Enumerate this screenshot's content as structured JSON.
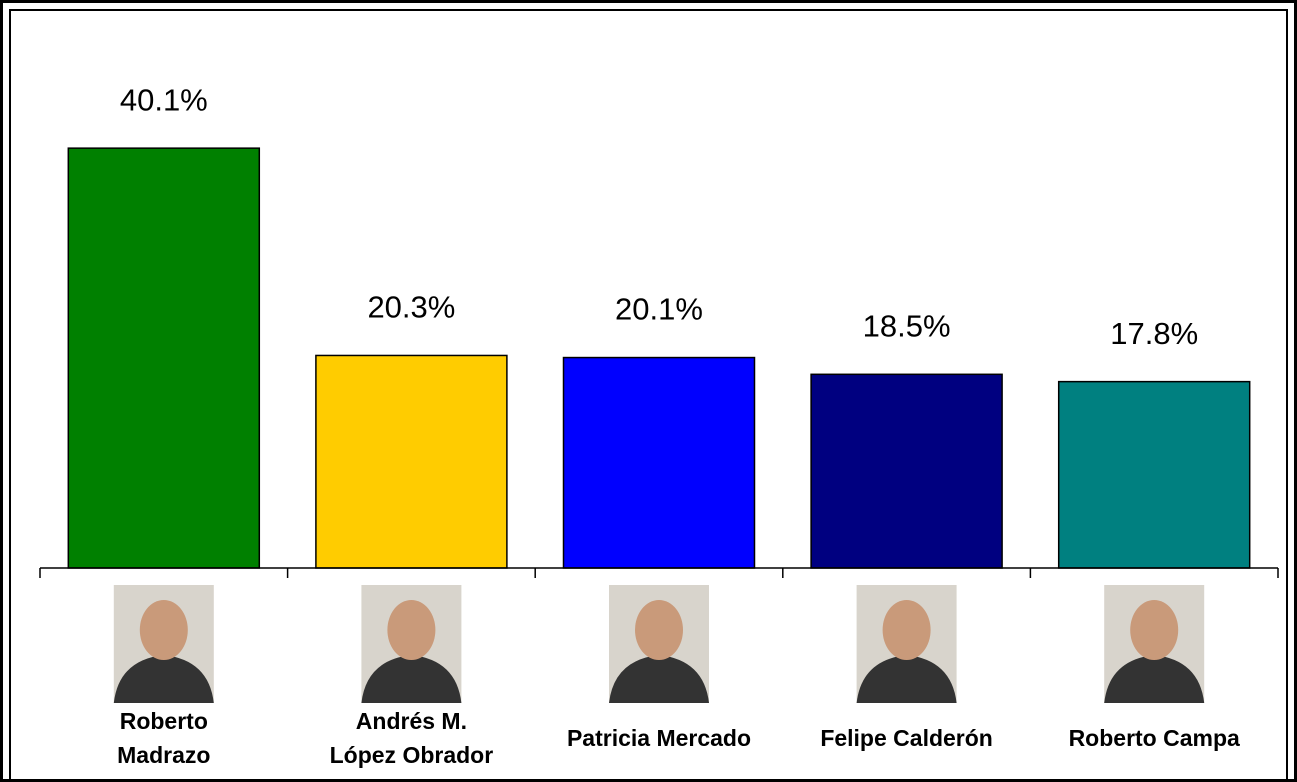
{
  "chart_data": {
    "type": "bar",
    "categories": [
      [
        "Roberto",
        "Madrazo"
      ],
      [
        "Andrés M.",
        "López Obrador"
      ],
      [
        "Patricia Mercado"
      ],
      [
        "Felipe Calderón"
      ],
      [
        "Roberto Campa"
      ]
    ],
    "values": [
      40.1,
      20.3,
      20.1,
      18.5,
      17.8
    ],
    "value_labels": [
      "40.1%",
      "20.3%",
      "20.1%",
      "18.5%",
      "17.8%"
    ],
    "colors": [
      "#008000",
      "#ffcc00",
      "#0000ff",
      "#000080",
      "#008080"
    ]
  }
}
